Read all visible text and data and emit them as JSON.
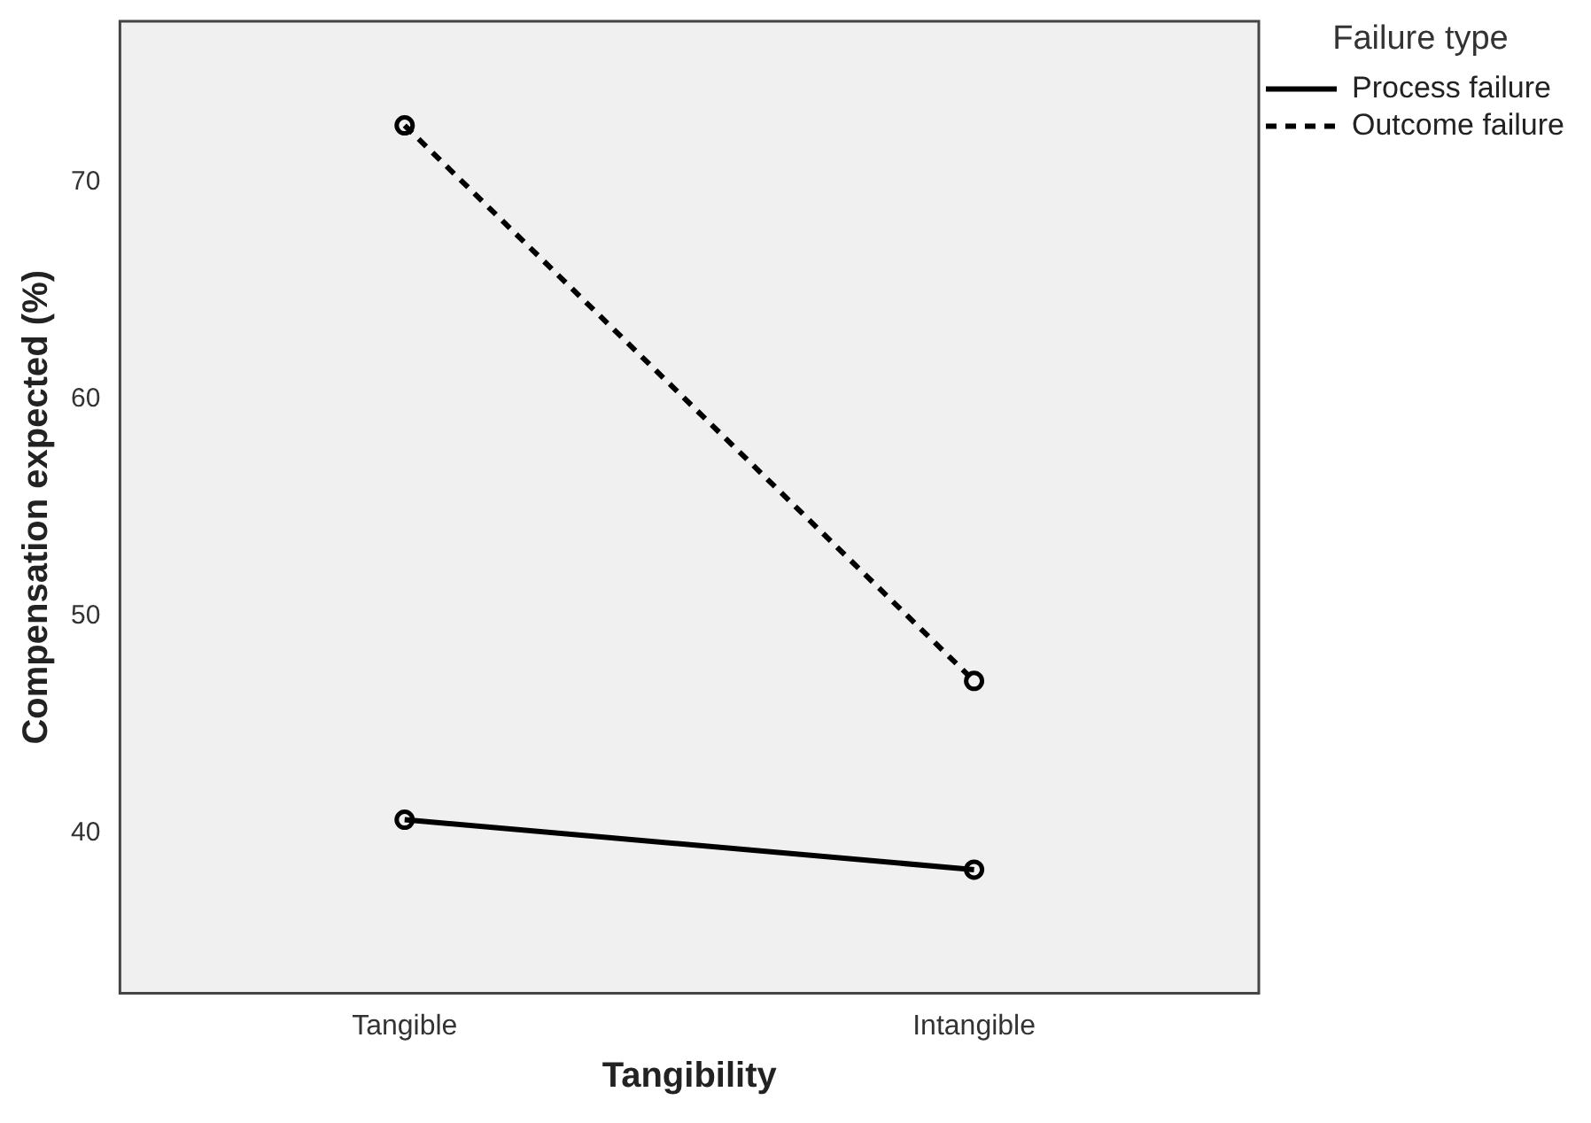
{
  "chart_data": {
    "type": "line",
    "xlabel": "Tangibility",
    "ylabel": "Compensation expected (%)",
    "legend_title": "Failure type",
    "categories": [
      "Tangible",
      "Intangible"
    ],
    "ylim": [
      32.6,
      77.4
    ],
    "yticks": [
      40,
      50,
      60,
      70
    ],
    "grid": false,
    "legend": "top right",
    "marker": "circle",
    "series": [
      {
        "name": "Process failure",
        "color": "#000000",
        "values": [
          40.6,
          38.3
        ],
        "line_style": "solid"
      },
      {
        "name": "Outcome failure",
        "color": "#000000",
        "values": [
          72.6,
          47.0
        ],
        "line_style": "dashed"
      }
    ]
  }
}
